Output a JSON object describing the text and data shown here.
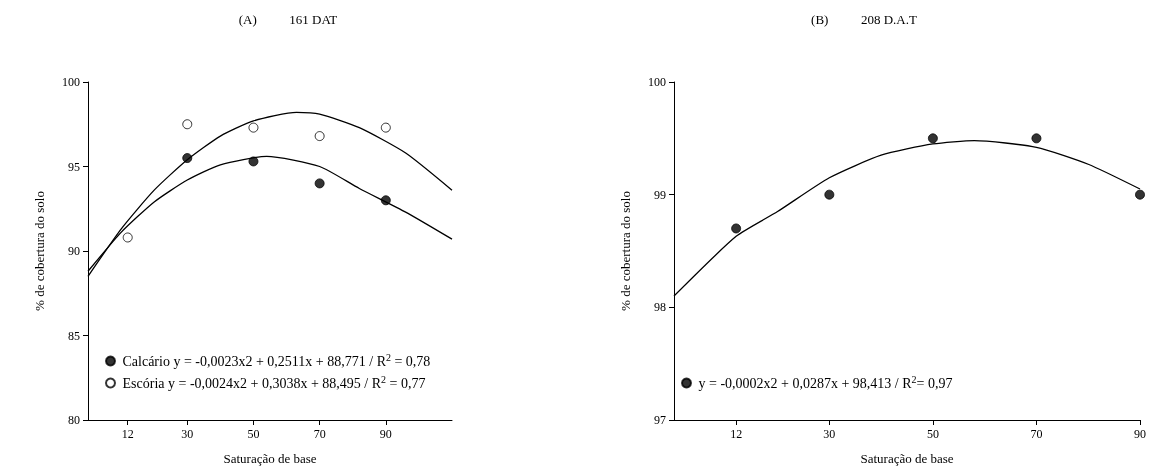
{
  "chart_data": [
    {
      "type": "scatter",
      "title": "(A)          161 DAT",
      "xlabel": "Saturação de base",
      "ylabel": "% de cobertura do solo",
      "xlim": [
        0,
        110
      ],
      "xticks": [
        12,
        30,
        50,
        70,
        90
      ],
      "ylim": [
        80,
        100
      ],
      "yticks": [
        80,
        85,
        90,
        95,
        100
      ],
      "grid": false,
      "legend": "bottom left",
      "series": [
        {
          "name": "Calcário y = -0,0023x2 + 0,2511x + 88,771 / R$^{2}$ = 0,78",
          "marker": "circle",
          "color": "#000000",
          "x": [
            30,
            50,
            70,
            90
          ],
          "values": [
            95.5,
            95.3,
            94.0,
            93.0
          ]
        },
        {
          "name": "Escória y = -0,0024x2 + 0,3038x + 88,495 / R$^{2}$ = 0,77",
          "marker": "circle",
          "color": "#ffffff",
          "x": [
            12,
            30,
            50,
            70,
            90
          ],
          "values": [
            90.8,
            97.5,
            97.3,
            96.8,
            97.3
          ]
        },
        {
          "type": "line",
          "marker": "none",
          "color": "#000000",
          "x": [
            0,
            10,
            20,
            30,
            40,
            54,
            70,
            82,
            96,
            110
          ],
          "values": [
            88.8,
            91.1,
            92.9,
            94.2,
            95.1,
            95.6,
            95.0,
            93.7,
            92.3,
            90.7
          ]
        },
        {
          "type": "line",
          "marker": "none",
          "color": "#000000",
          "x": [
            0,
            10,
            20,
            30,
            40,
            50,
            63,
            70,
            82,
            96,
            110
          ],
          "values": [
            88.5,
            91.3,
            93.6,
            95.4,
            96.8,
            97.7,
            98.2,
            98.1,
            97.3,
            95.8,
            93.6
          ]
        }
      ]
    },
    {
      "type": "scatter",
      "title": "(B)          208 D.A.T",
      "xlabel": "Saturação de base",
      "ylabel": "% de cobertura do solo",
      "xlim": [
        0,
        90
      ],
      "xticks": [
        12,
        30,
        50,
        70,
        90
      ],
      "ylim": [
        97,
        100
      ],
      "yticks": [
        97,
        98,
        99,
        100
      ],
      "grid": false,
      "legend": "bottom left",
      "series": [
        {
          "marker": "circle",
          "name": "y = -0,0002x2 + 0,0287x + 98,413 / R$^{2}$= 0,97",
          "color": "#000000",
          "x": [
            12,
            30,
            50,
            70,
            90
          ],
          "values": [
            98.7,
            99.0,
            99.5,
            99.5,
            99.0
          ]
        },
        {
          "type": "line",
          "marker": "none",
          "color": "#000000",
          "x": [
            0,
            12,
            20,
            30,
            40,
            50,
            58,
            70,
            80,
            90
          ],
          "values": [
            98.1,
            98.63,
            98.85,
            99.15,
            99.35,
            99.45,
            99.48,
            99.42,
            99.27,
            99.05
          ]
        }
      ]
    }
  ]
}
